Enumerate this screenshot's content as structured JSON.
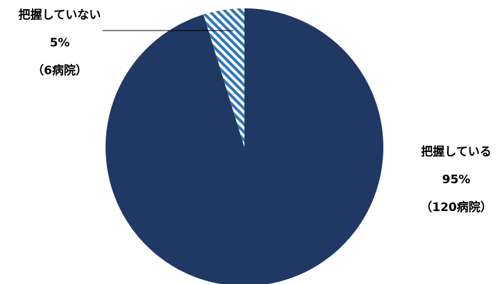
{
  "chart_data": {
    "type": "pie",
    "title": "",
    "slices": [
      {
        "label": "把握している",
        "percent_label": "95%",
        "count_label": "（120病院）",
        "value": 120,
        "color": "#203864",
        "pattern": "solid"
      },
      {
        "label": "把握していない",
        "percent_label": "5%",
        "count_label": "（6病院）",
        "value": 6,
        "color": "#2e75b6",
        "pattern": "diagonal-stripes"
      }
    ]
  }
}
